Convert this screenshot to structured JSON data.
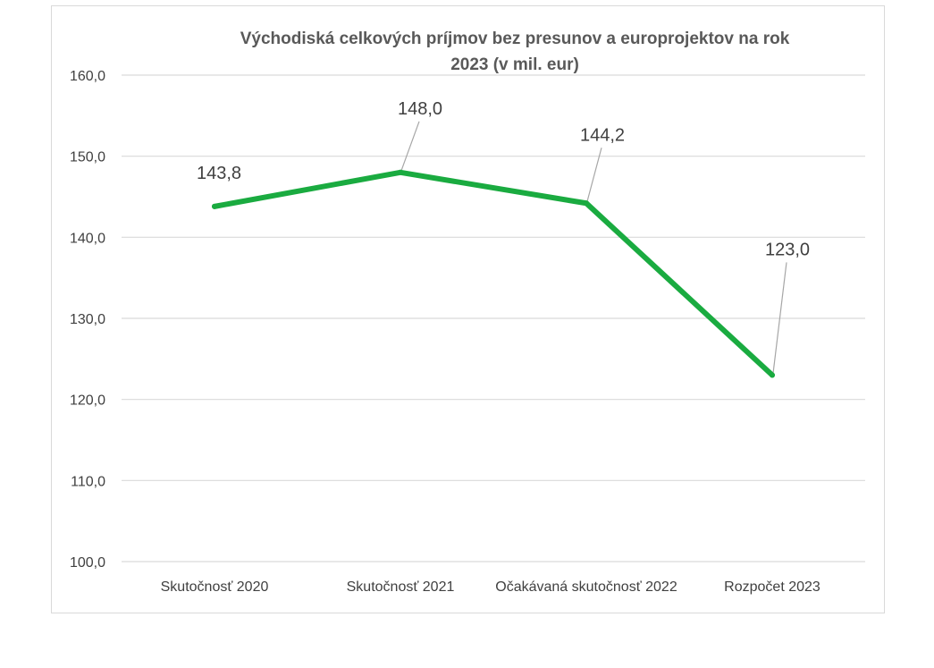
{
  "chart_data": {
    "type": "line",
    "title_lines": [
      "Východiská celkových príjmov bez presunov a europrojektov na rok",
      "2023 (v mil. eur)"
    ],
    "categories": [
      "Skutočnosť 2020",
      "Skutočnosť 2021",
      "Očakávaná skutočnosť 2022",
      "Rozpočet 2023"
    ],
    "series": [
      {
        "values": [
          143.8,
          148.0,
          144.2,
          123.0
        ],
        "data_labels": [
          "143,8",
          "148,0",
          "144,2",
          "123,0"
        ],
        "color": "#1aab40"
      }
    ],
    "ylim": [
      100,
      160
    ],
    "yticks": [
      100,
      110,
      120,
      130,
      140,
      150,
      160
    ],
    "ytick_labels": [
      "100,0",
      "110,0",
      "120,0",
      "130,0",
      "140,0",
      "150,0",
      "160,0"
    ],
    "grid": true,
    "gridline_color": "#d9d9d9",
    "leader_line_color": "#a6a6a6"
  }
}
